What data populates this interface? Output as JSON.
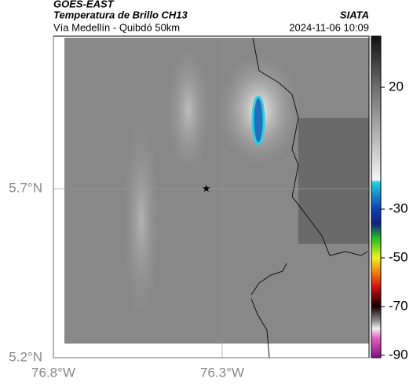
{
  "header": {
    "title": "GOES-EAST",
    "subtitle": "Temperatura de Brillo CH13",
    "location": "Vía Medellín - Quibdó 50km",
    "source": "SIATA",
    "timestamp": "2024-11-06 10:09"
  },
  "map": {
    "xlim": [
      -76.8,
      -75.865
    ],
    "ylim": [
      5.2,
      6.151
    ],
    "xticks": [
      {
        "value": -76.8,
        "label": "76.8°W"
      },
      {
        "value": -76.3,
        "label": "76.3°W"
      }
    ],
    "yticks": [
      {
        "value": 5.7,
        "label": "5.7°N"
      },
      {
        "value": 5.2,
        "label": "5.2°N"
      }
    ],
    "grid": true,
    "marker": {
      "lon": -76.347,
      "lat": 5.7
    }
  },
  "colorbar": {
    "lim": [
      -91,
      41
    ],
    "ticks": [
      20,
      -30,
      -50,
      -70,
      -90
    ],
    "stops": [
      {
        "value": 41,
        "color": "#111111"
      },
      {
        "value": 20,
        "color": "#6e6e6e"
      },
      {
        "value": -18,
        "color": "#f4f4f4"
      },
      {
        "value": -19,
        "color": "#20d0e0"
      },
      {
        "value": -30,
        "color": "#1040b0"
      },
      {
        "value": -36,
        "color": "#102080"
      },
      {
        "value": -42,
        "color": "#20c020"
      },
      {
        "value": -50,
        "color": "#f0f020"
      },
      {
        "value": -56,
        "color": "#f08010"
      },
      {
        "value": -62,
        "color": "#d01010"
      },
      {
        "value": -70,
        "color": "#100000"
      },
      {
        "value": -76,
        "color": "#909090"
      },
      {
        "value": -79,
        "color": "#f0f0f0"
      },
      {
        "value": -83,
        "color": "#e060c0"
      },
      {
        "value": -91,
        "color": "#801080"
      }
    ]
  }
}
